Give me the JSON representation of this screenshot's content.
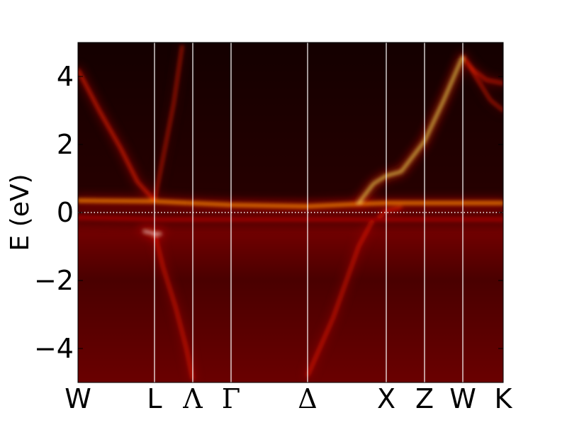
{
  "chart_data": {
    "type": "heatmap",
    "title": "",
    "xlabel": "",
    "ylabel": "E (eV)",
    "ylim": [
      -5,
      5
    ],
    "yticks": [
      {
        "value": 4,
        "label": "4"
      },
      {
        "value": 2,
        "label": "2"
      },
      {
        "value": 0,
        "label": "0"
      },
      {
        "value": -2,
        "label": "−2"
      },
      {
        "value": -4,
        "label": "−4"
      }
    ],
    "k_path": [
      {
        "label": "W",
        "position": 0.0
      },
      {
        "label": "L",
        "position": 0.18
      },
      {
        "label": "Λ",
        "position": 0.27
      },
      {
        "label": "Γ",
        "position": 0.36
      },
      {
        "label": "Δ",
        "position": 0.54
      },
      {
        "label": "X",
        "position": 0.725
      },
      {
        "label": "Z",
        "position": 0.815
      },
      {
        "label": "W",
        "position": 0.905
      },
      {
        "label": "K",
        "position": 1.0
      }
    ],
    "fermi_level": 0.0,
    "colormap": [
      "#000000",
      "#4a0000",
      "#a00000",
      "#ff2000",
      "#ff9000",
      "#ffff60",
      "#ffffff"
    ],
    "background_color": "#3a0000",
    "bands": [
      {
        "name": "flat band",
        "points": [
          [
            0.0,
            0.35
          ],
          [
            0.18,
            0.33
          ],
          [
            0.36,
            0.22
          ],
          [
            0.54,
            0.18
          ],
          [
            0.66,
            0.25
          ],
          [
            0.725,
            0.28
          ],
          [
            0.815,
            0.28
          ],
          [
            0.905,
            0.28
          ],
          [
            1.0,
            0.28
          ]
        ],
        "intensity": 0.7,
        "width": 0.09
      },
      {
        "name": "dispersive up",
        "points": [
          [
            0.66,
            0.28
          ],
          [
            0.695,
            0.85
          ],
          [
            0.725,
            1.08
          ],
          [
            0.76,
            1.2
          ],
          [
            0.815,
            2.1
          ],
          [
            0.86,
            3.3
          ],
          [
            0.905,
            4.6
          ]
        ],
        "intensity": 0.85,
        "width": 0.06
      },
      {
        "name": "valence V",
        "points": [
          [
            0.54,
            -4.8
          ],
          [
            0.6,
            -3.1
          ],
          [
            0.66,
            -1.0
          ],
          [
            0.69,
            -0.3
          ],
          [
            0.725,
            0.05
          ],
          [
            0.76,
            0.15
          ]
        ],
        "intensity": 0.55,
        "width": 0.05
      },
      {
        "name": "L-Lambda",
        "points": [
          [
            0.18,
            -0.6
          ],
          [
            0.2,
            -1.6
          ],
          [
            0.23,
            -2.8
          ],
          [
            0.255,
            -4.0
          ],
          [
            0.27,
            -4.9
          ]
        ],
        "intensity": 0.55,
        "width": 0.05
      },
      {
        "name": "W-L upper",
        "points": [
          [
            0.0,
            4.2
          ],
          [
            0.05,
            3.0
          ],
          [
            0.1,
            1.9
          ],
          [
            0.14,
            0.9
          ],
          [
            0.18,
            0.35
          ]
        ],
        "intensity": 0.5,
        "width": 0.06
      },
      {
        "name": "L-Lambda upper",
        "points": [
          [
            0.18,
            0.35
          ],
          [
            0.2,
            1.6
          ],
          [
            0.225,
            3.2
          ],
          [
            0.245,
            4.9
          ]
        ],
        "intensity": 0.45,
        "width": 0.05
      },
      {
        "name": "W-K upper left",
        "points": [
          [
            0.905,
            4.6
          ],
          [
            0.93,
            4.2
          ],
          [
            0.96,
            3.9
          ],
          [
            1.0,
            3.8
          ]
        ],
        "intensity": 0.5,
        "width": 0.05
      },
      {
        "name": "W-K upper right",
        "points": [
          [
            0.905,
            4.6
          ],
          [
            0.94,
            3.9
          ],
          [
            0.97,
            3.3
          ],
          [
            1.0,
            3.0
          ]
        ],
        "intensity": 0.45,
        "width": 0.05
      },
      {
        "name": "L spot",
        "points": [
          [
            0.155,
            -0.55
          ],
          [
            0.18,
            -0.62
          ],
          [
            0.195,
            -0.63
          ]
        ],
        "intensity": 1.0,
        "width": 0.05
      },
      {
        "name": "lower flat",
        "points": [
          [
            0.0,
            -0.15
          ],
          [
            0.2,
            -0.2
          ],
          [
            0.4,
            -0.2
          ],
          [
            0.6,
            -0.2
          ],
          [
            0.8,
            -0.2
          ],
          [
            1.0,
            -0.2
          ]
        ],
        "intensity": 0.35,
        "width": 0.12
      }
    ],
    "grid": false
  }
}
